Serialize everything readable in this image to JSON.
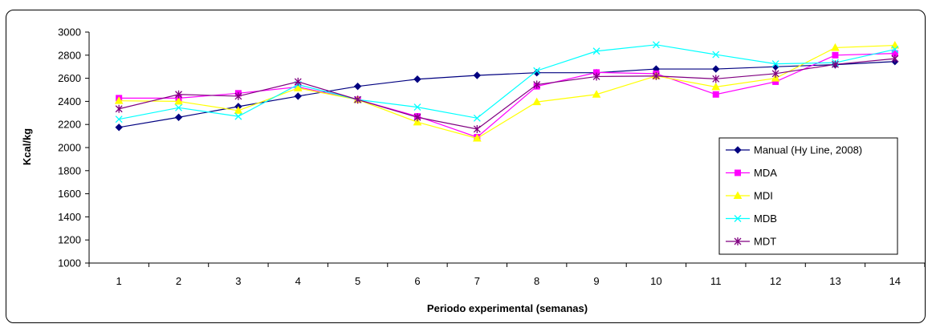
{
  "chart_data": {
    "type": "line",
    "title": "",
    "xlabel": "Periodo experimental (semanas)",
    "ylabel": "Kcal/kg",
    "ylim": [
      1000,
      3000
    ],
    "yticks": [
      1000,
      1200,
      1400,
      1600,
      1800,
      2000,
      2200,
      2400,
      2600,
      2800,
      3000
    ],
    "categories": [
      "1",
      "2",
      "3",
      "4",
      "5",
      "6",
      "7",
      "8",
      "9",
      "10",
      "11",
      "12",
      "13",
      "14"
    ],
    "grid": false,
    "legend": "right",
    "series": [
      {
        "name": "Manual (Hy Line, 2008)",
        "color": "#000080",
        "marker": "diamond",
        "values": [
          2175,
          2262,
          2355,
          2445,
          2530,
          2592,
          2625,
          2648,
          2648,
          2680,
          2680,
          2700,
          2718,
          2745
        ]
      },
      {
        "name": "MDA",
        "color": "#FF00FF",
        "marker": "square",
        "values": [
          2428,
          2428,
          2470,
          2525,
          2415,
          2270,
          2090,
          2530,
          2650,
          2640,
          2460,
          2570,
          2800,
          2815
        ]
      },
      {
        "name": "MDI",
        "color": "#FFFF00",
        "marker": "triangle",
        "values": [
          2405,
          2400,
          2320,
          2515,
          2415,
          2220,
          2080,
          2395,
          2460,
          2620,
          2525,
          2600,
          2865,
          2885
        ]
      },
      {
        "name": "MDB",
        "color": "#00FFFF",
        "marker": "x",
        "values": [
          2245,
          2345,
          2270,
          2545,
          2415,
          2350,
          2255,
          2665,
          2835,
          2890,
          2805,
          2725,
          2735,
          2850
        ]
      },
      {
        "name": "MDT",
        "color": "#800080",
        "marker": "star",
        "values": [
          2335,
          2460,
          2445,
          2570,
          2415,
          2262,
          2160,
          2545,
          2615,
          2620,
          2595,
          2640,
          2720,
          2770
        ]
      }
    ]
  }
}
